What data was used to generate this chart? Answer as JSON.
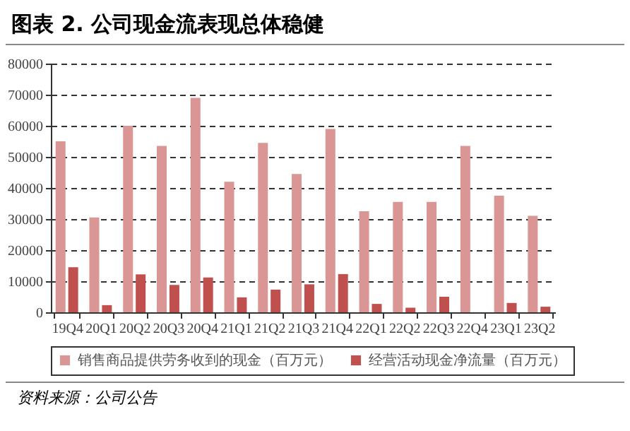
{
  "chart_data": {
    "type": "bar",
    "title": "图表 2. 公司现金流表现总体稳健",
    "categories": [
      "19Q4",
      "20Q1",
      "20Q2",
      "20Q3",
      "20Q4",
      "21Q1",
      "21Q2",
      "21Q3",
      "21Q4",
      "22Q1",
      "22Q2",
      "22Q3",
      "22Q4",
      "23Q1",
      "23Q2"
    ],
    "series": [
      {
        "name": "销售商品提供劳务收到的现金（百万元）",
        "color": "#d99694",
        "values": [
          55000,
          30500,
          60000,
          53500,
          69000,
          42000,
          54500,
          44500,
          59000,
          32500,
          35500,
          35500,
          53500,
          37500,
          31000
        ]
      },
      {
        "name": "经营活动现金净流量（百万元）",
        "color": "#c0504d",
        "values": [
          14500,
          2300,
          12200,
          8800,
          11200,
          4800,
          7300,
          9000,
          12300,
          2700,
          1500,
          5000,
          0,
          3000,
          1800
        ]
      }
    ],
    "ylim": [
      0,
      80000
    ],
    "yticks": [
      0,
      10000,
      20000,
      30000,
      40000,
      50000,
      60000,
      70000,
      80000
    ],
    "grid": "y",
    "legend": "bottom",
    "annotations": [
      "资料来源：公司公告"
    ]
  }
}
